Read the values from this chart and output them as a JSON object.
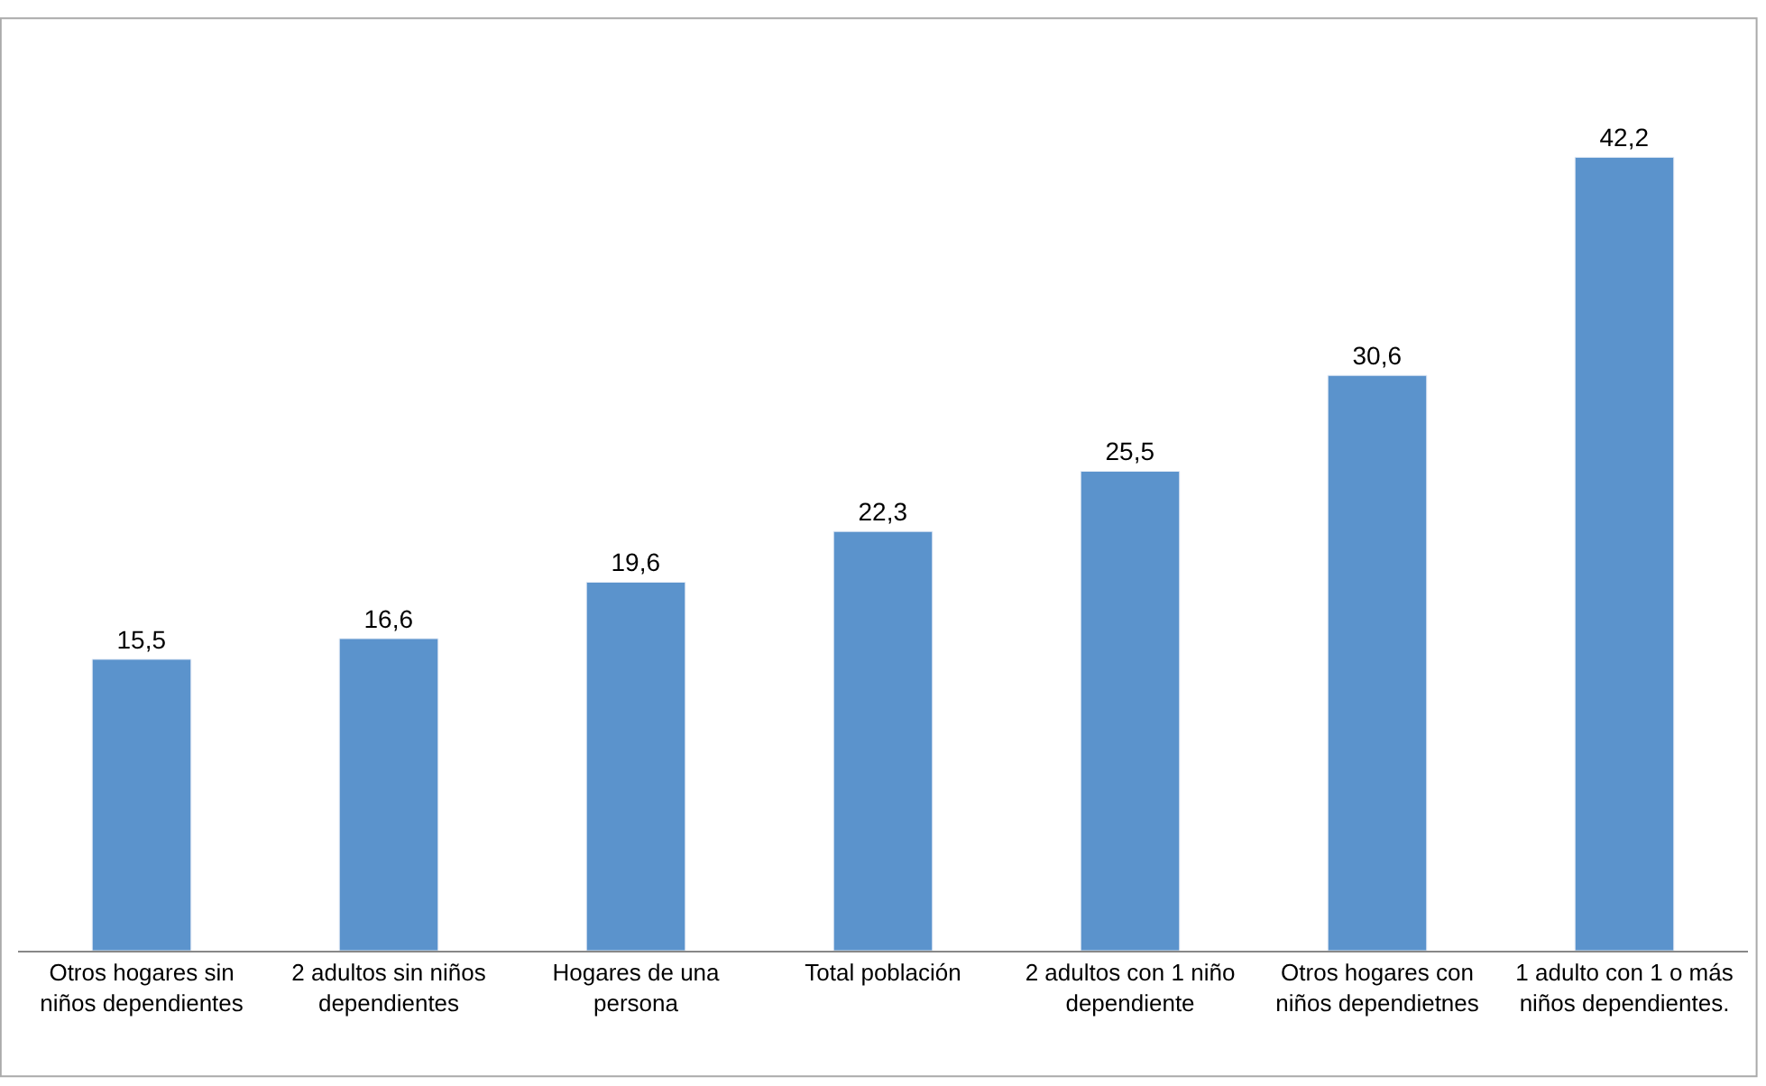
{
  "chart_data": {
    "type": "bar",
    "categories": [
      "Otros hogares sin niños dependientes",
      "2 adultos sin niños dependientes",
      "Hogares de una persona",
      "Total población",
      "2 adultos con 1 niño dependiente",
      "Otros hogares con niños dependietnes",
      "1 adulto con 1 o más niños dependientes."
    ],
    "values": [
      15.5,
      16.6,
      19.6,
      22.3,
      25.5,
      30.6,
      42.2
    ],
    "value_labels": [
      "15,5",
      "16,6",
      "19,6",
      "22,3",
      "25,5",
      "30,6",
      "42,2"
    ],
    "color": "#5b93cc"
  }
}
